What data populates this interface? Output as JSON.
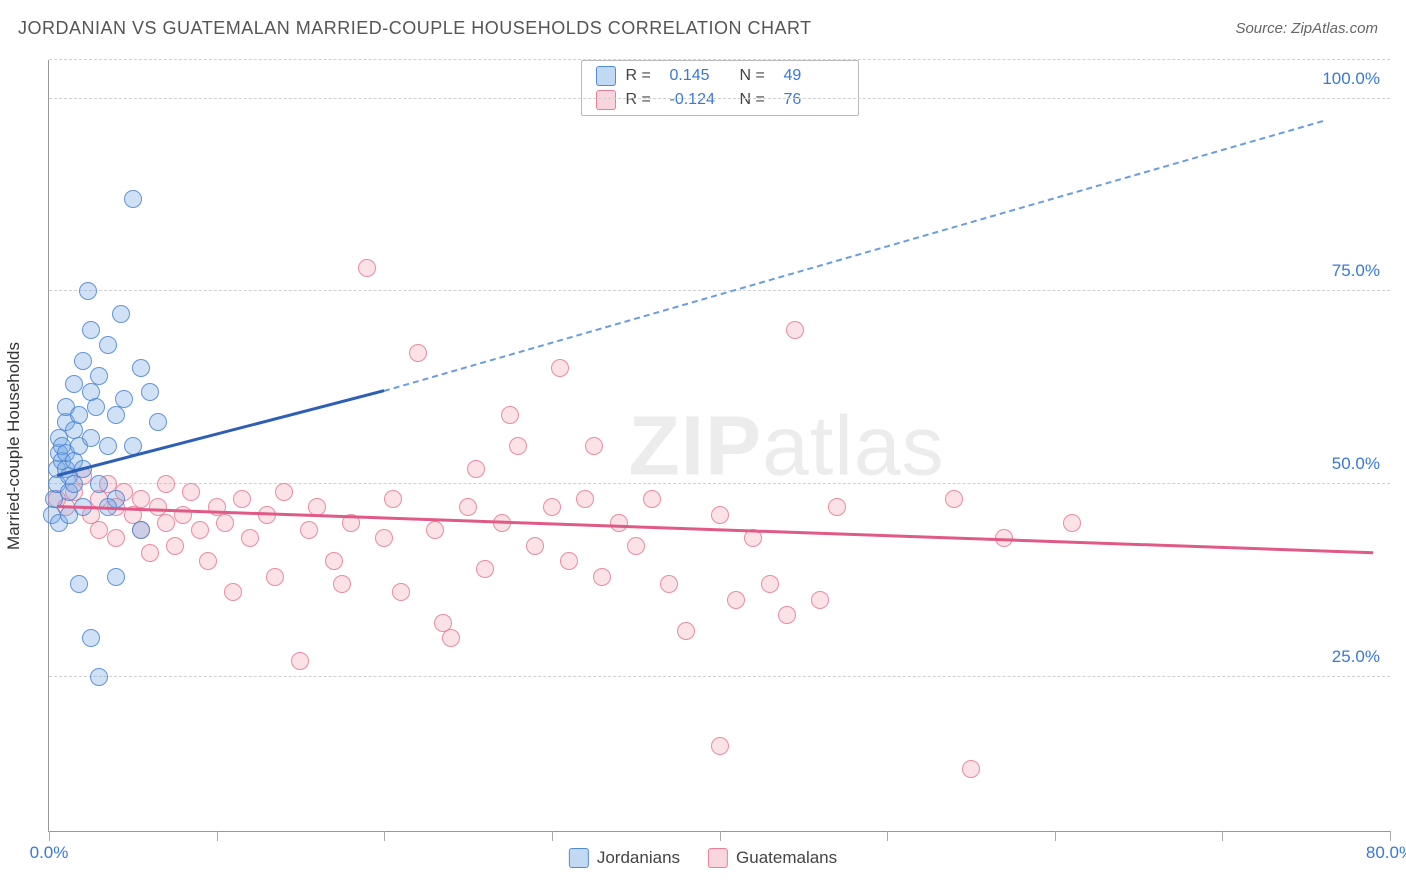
{
  "title": "JORDANIAN VS GUATEMALAN MARRIED-COUPLE HOUSEHOLDS CORRELATION CHART",
  "source": "Source: ZipAtlas.com",
  "y_axis_label": "Married-couple Households",
  "watermark": "ZIPatlas",
  "chart": {
    "type": "scatter",
    "xlim": [
      0,
      80
    ],
    "ylim": [
      5,
      105
    ],
    "x_ticks": [
      0,
      10,
      20,
      30,
      40,
      50,
      60,
      70,
      80
    ],
    "x_tick_labels": {
      "0": "0.0%",
      "80": "80.0%"
    },
    "y_gridlines": [
      25,
      50,
      75,
      100,
      105
    ],
    "y_tick_labels": {
      "25": "25.0%",
      "50": "50.0%",
      "75": "75.0%",
      "100": "100.0%"
    },
    "background_color": "#ffffff",
    "grid_color": "#d0d0d0",
    "axis_color": "#999999",
    "marker_size": 18,
    "series": {
      "jordanians": {
        "label": "Jordanians",
        "color_fill": "rgba(120,170,230,0.35)",
        "color_stroke": "rgba(70,130,210,0.8)",
        "R": "0.145",
        "N": "49",
        "trend": {
          "x1": 0.5,
          "y1": 51,
          "x2": 20,
          "y2": 62,
          "solid_color": "#2e5fb5",
          "dash_x2": 76,
          "dash_y2": 97,
          "dash_color": "#6a9de0"
        },
        "points": [
          [
            0.2,
            46
          ],
          [
            0.3,
            48
          ],
          [
            0.5,
            50
          ],
          [
            0.5,
            52
          ],
          [
            0.6,
            54
          ],
          [
            0.6,
            56
          ],
          [
            0.6,
            45
          ],
          [
            0.8,
            53
          ],
          [
            0.8,
            55
          ],
          [
            1.0,
            52
          ],
          [
            1.0,
            54
          ],
          [
            1.0,
            58
          ],
          [
            1.0,
            60
          ],
          [
            1.2,
            46
          ],
          [
            1.2,
            49
          ],
          [
            1.2,
            51
          ],
          [
            1.5,
            63
          ],
          [
            1.5,
            57
          ],
          [
            1.5,
            53
          ],
          [
            1.5,
            50
          ],
          [
            1.8,
            55
          ],
          [
            1.8,
            59
          ],
          [
            2.0,
            47
          ],
          [
            2.0,
            52
          ],
          [
            2.0,
            66
          ],
          [
            2.5,
            70
          ],
          [
            2.3,
            75
          ],
          [
            2.5,
            62
          ],
          [
            2.5,
            56
          ],
          [
            2.8,
            60
          ],
          [
            3.0,
            50
          ],
          [
            3.0,
            64
          ],
          [
            3.5,
            55
          ],
          [
            3.5,
            68
          ],
          [
            4.0,
            59
          ],
          [
            4.0,
            48
          ],
          [
            4.3,
            72
          ],
          [
            4.5,
            61
          ],
          [
            5.0,
            55
          ],
          [
            5.0,
            87
          ],
          [
            5.5,
            65
          ],
          [
            6.0,
            62
          ],
          [
            6.5,
            58
          ],
          [
            3.0,
            25
          ],
          [
            2.5,
            30
          ],
          [
            1.8,
            37
          ],
          [
            4.0,
            38
          ],
          [
            5.5,
            44
          ],
          [
            3.5,
            47
          ]
        ]
      },
      "guatemalans": {
        "label": "Guatemalans",
        "color_fill": "rgba(240,150,170,0.28)",
        "color_stroke": "rgba(230,110,140,0.75)",
        "R": "-0.124",
        "N": "76",
        "trend": {
          "x1": 0.5,
          "y1": 47,
          "x2": 79,
          "y2": 41,
          "solid_color": "#e05a87"
        },
        "points": [
          [
            0.5,
            48
          ],
          [
            1.0,
            47
          ],
          [
            1.5,
            49
          ],
          [
            2.0,
            51
          ],
          [
            2.5,
            46
          ],
          [
            3.0,
            48
          ],
          [
            3.0,
            44
          ],
          [
            3.5,
            50
          ],
          [
            4.0,
            43
          ],
          [
            4.0,
            47
          ],
          [
            4.5,
            49
          ],
          [
            5.0,
            46
          ],
          [
            5.5,
            44
          ],
          [
            5.5,
            48
          ],
          [
            6.0,
            41
          ],
          [
            6.5,
            47
          ],
          [
            7.0,
            45
          ],
          [
            7.0,
            50
          ],
          [
            7.5,
            42
          ],
          [
            8.0,
            46
          ],
          [
            8.5,
            49
          ],
          [
            9.0,
            44
          ],
          [
            9.5,
            40
          ],
          [
            10.0,
            47
          ],
          [
            10.5,
            45
          ],
          [
            11.0,
            36
          ],
          [
            11.5,
            48
          ],
          [
            12.0,
            43
          ],
          [
            13.0,
            46
          ],
          [
            13.5,
            38
          ],
          [
            14.0,
            49
          ],
          [
            15.0,
            27
          ],
          [
            15.5,
            44
          ],
          [
            16.0,
            47
          ],
          [
            17.0,
            40
          ],
          [
            17.5,
            37
          ],
          [
            18.0,
            45
          ],
          [
            19.0,
            78
          ],
          [
            20.0,
            43
          ],
          [
            20.5,
            48
          ],
          [
            21.0,
            36
          ],
          [
            22.0,
            67
          ],
          [
            23.0,
            44
          ],
          [
            23.5,
            32
          ],
          [
            24.0,
            30
          ],
          [
            25.0,
            47
          ],
          [
            25.5,
            52
          ],
          [
            26.0,
            39
          ],
          [
            27.0,
            45
          ],
          [
            27.5,
            59
          ],
          [
            28.0,
            55
          ],
          [
            29.0,
            42
          ],
          [
            30.0,
            47
          ],
          [
            30.5,
            65
          ],
          [
            31.0,
            40
          ],
          [
            32.0,
            48
          ],
          [
            32.5,
            55
          ],
          [
            33.0,
            38
          ],
          [
            34.0,
            45
          ],
          [
            35.0,
            42
          ],
          [
            36.0,
            48
          ],
          [
            37.0,
            37
          ],
          [
            38.0,
            31
          ],
          [
            40.0,
            46
          ],
          [
            41.0,
            35
          ],
          [
            42.0,
            43
          ],
          [
            43.0,
            37
          ],
          [
            44.0,
            33
          ],
          [
            44.5,
            70
          ],
          [
            46.0,
            35
          ],
          [
            47.0,
            47
          ],
          [
            54.0,
            48
          ],
          [
            57.0,
            43
          ],
          [
            61.0,
            45
          ],
          [
            55.0,
            13
          ],
          [
            40.0,
            16
          ]
        ]
      }
    }
  },
  "legend_top": [
    {
      "swatch": "blue",
      "R_label": "R =",
      "R": "0.145",
      "N_label": "N =",
      "N": "49"
    },
    {
      "swatch": "pink",
      "R_label": "R =",
      "R": "-0.124",
      "N_label": "N =",
      "N": "76"
    }
  ],
  "legend_bottom": [
    {
      "swatch": "blue",
      "label": "Jordanians"
    },
    {
      "swatch": "pink",
      "label": "Guatemalans"
    }
  ]
}
